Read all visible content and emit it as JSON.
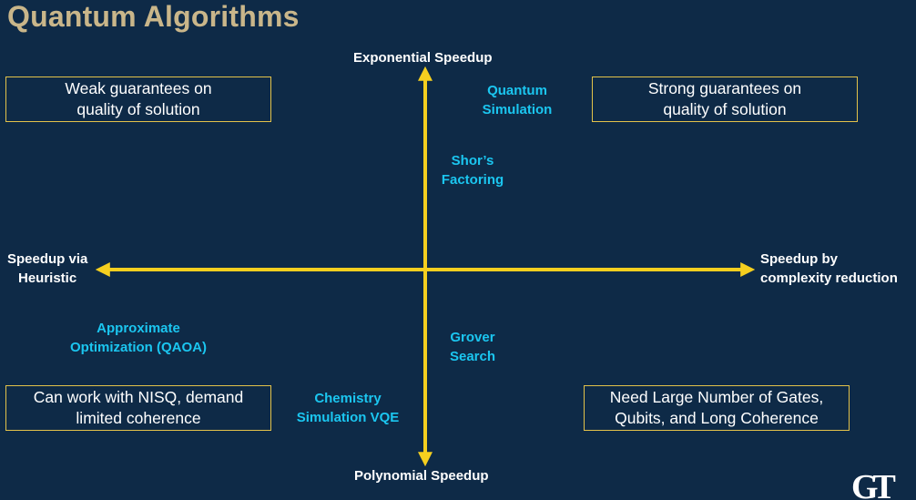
{
  "title": "Quantum Algorithms",
  "axes": {
    "top": "Exponential Speedup",
    "bottom": "Polynomial Speedup",
    "left_line1": "Speedup via",
    "left_line2": "Heuristic",
    "right_line1": "Speedup by",
    "right_line2": "complexity reduction"
  },
  "boxes": {
    "top_left": [
      "Weak guarantees on",
      "quality of solution"
    ],
    "top_right": [
      "Strong guarantees on",
      "quality of solution"
    ],
    "bottom_left": [
      "Can work with NISQ, demand",
      "limited coherence"
    ],
    "bottom_right": [
      "Need Large Number of Gates,",
      "Qubits, and Long Coherence"
    ]
  },
  "algorithms": {
    "quantum_simulation": [
      "Quantum",
      "Simulation"
    ],
    "shors_factoring": [
      "Shor’s",
      "Factoring"
    ],
    "approximate_optimization": [
      "Approximate",
      "Optimization (QAOA)"
    ],
    "grover_search": [
      "Grover",
      "Search"
    ],
    "chemistry_simulation": [
      "Chemistry",
      "Simulation VQE"
    ]
  },
  "colors": {
    "background": "#0e2a47",
    "title": "#c9b68a",
    "axis_arrow": "#f5cf1f",
    "algorithm_text": "#1bc6f0",
    "box_border": "#e3c24a"
  },
  "logo": "GT"
}
